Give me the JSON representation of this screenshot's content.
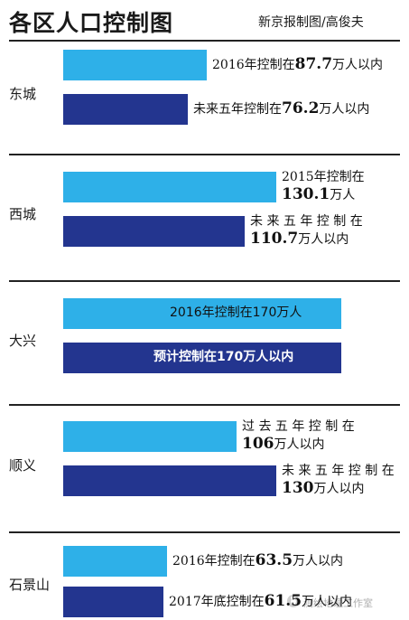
{
  "header": {
    "title": "各区人口控制图",
    "credit": "新京报制图/高俊夫"
  },
  "colors": {
    "light_bar": "#2eb0e8",
    "dark_bar": "#23358f",
    "divider": "#222222"
  },
  "watermark": {
    "text": "测绘地理工作室",
    "icon": "camera-logo-icon"
  },
  "chart_data": {
    "type": "bar",
    "orientation": "horizontal",
    "unit": "万人",
    "categories": [
      "东城",
      "西城",
      "大兴",
      "顺义",
      "石景山"
    ],
    "series": [
      {
        "values": [
          87.7,
          130.1,
          170,
          106,
          63.5
        ]
      },
      {
        "values": [
          76.2,
          110.7,
          170,
          130,
          61.5
        ]
      }
    ],
    "labels": [
      [
        [
          {
            "t": "2016年控制在",
            "num": false
          },
          {
            "t": "87.7",
            "num": true
          },
          {
            "t": "万人以内",
            "num": false
          }
        ],
        [
          {
            "t": "未来五年控制在",
            "num": false
          },
          {
            "t": "76.2",
            "num": true
          },
          {
            "t": "万人以内",
            "num": false
          }
        ]
      ],
      [
        [
          {
            "t": "2015年控制在",
            "num": false
          },
          {
            "t": "\n",
            "num": false
          },
          {
            "t": "130.1",
            "num": true
          },
          {
            "t": "万人",
            "num": false
          }
        ],
        [
          {
            "t": "未 来 五 年 控 制 在",
            "num": false
          },
          {
            "t": "\n",
            "num": false
          },
          {
            "t": "110.7",
            "num": true
          },
          {
            "t": "万人以内",
            "num": false
          }
        ]
      ],
      [
        [
          {
            "t": "2016年控制在170万人",
            "num": false
          }
        ],
        [
          {
            "t": "预计控制在170万人以内",
            "num": false
          }
        ]
      ],
      [
        [
          {
            "t": "过 去 五 年 控 制 在",
            "num": false
          },
          {
            "t": "\n",
            "num": false
          },
          {
            "t": "106",
            "num": true
          },
          {
            "t": "万人以内",
            "num": false
          }
        ],
        [
          {
            "t": "未 来 五 年 控 制 在",
            "num": false
          },
          {
            "t": "\n",
            "num": false
          },
          {
            "t": "130",
            "num": true
          },
          {
            "t": "万人以内",
            "num": false
          }
        ]
      ],
      [
        [
          {
            "t": "2016年控制在",
            "num": false
          },
          {
            "t": "63.5",
            "num": true
          },
          {
            "t": "万人以内",
            "num": false
          }
        ],
        [
          {
            "t": "2017年底控制在",
            "num": false
          },
          {
            "t": "61.5",
            "num": true
          },
          {
            "t": "万人以内",
            "num": false
          }
        ]
      ]
    ]
  }
}
